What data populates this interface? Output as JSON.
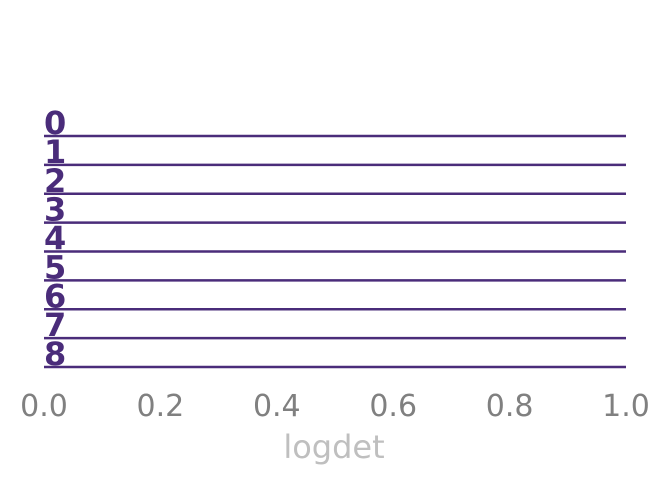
{
  "chart_data": {
    "type": "ridgeline",
    "xlabel": "logdet",
    "xlim": [
      0.0,
      1.0
    ],
    "xticks": [
      0.0,
      0.2,
      0.4,
      0.6,
      0.8,
      1.0
    ],
    "xtick_labels": [
      "0.0",
      "0.2",
      "0.4",
      "0.6",
      "0.8",
      "1.0"
    ],
    "grid": false,
    "series": [
      {
        "name": "0",
        "values": []
      },
      {
        "name": "1",
        "values": []
      },
      {
        "name": "2",
        "values": []
      },
      {
        "name": "3",
        "values": []
      },
      {
        "name": "4",
        "values": []
      },
      {
        "name": "5",
        "values": []
      },
      {
        "name": "6",
        "values": []
      },
      {
        "name": "7",
        "values": []
      },
      {
        "name": "8",
        "values": []
      }
    ],
    "colors": {
      "series": "#4a2c7a",
      "tick_text": "#808080",
      "axis_label": "#bfbfbf"
    }
  }
}
